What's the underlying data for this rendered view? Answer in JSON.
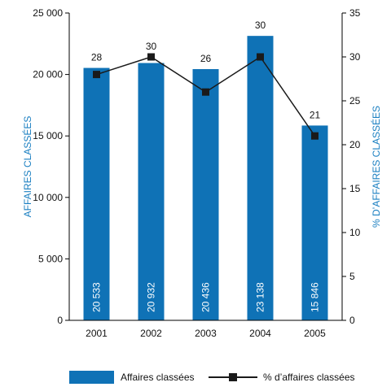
{
  "chart_data": {
    "type": "bar",
    "categories": [
      "2001",
      "2002",
      "2003",
      "2004",
      "2005"
    ],
    "series": [
      {
        "name": "Affaires classées",
        "type": "bar",
        "axis": "left",
        "values": [
          20533,
          20932,
          20436,
          23138,
          15846
        ],
        "value_labels": [
          "20 533",
          "20 932",
          "20 436",
          "23 138",
          "15 846"
        ]
      },
      {
        "name": "% d’affaires classées",
        "type": "line",
        "axis": "right",
        "values": [
          28,
          30,
          26,
          30,
          21
        ],
        "value_labels": [
          "28",
          "30",
          "26",
          "30",
          "21"
        ]
      }
    ],
    "ylabel": "AFFAIRES CLASSÉES",
    "y2label": "% D’AFFAIRES CLASSÉES",
    "ylim": [
      0,
      25000
    ],
    "y2lim": [
      0,
      35
    ],
    "yticks": [
      0,
      5000,
      10000,
      15000,
      20000,
      25000
    ],
    "ytick_labels": [
      "0",
      "5 000",
      "10 000",
      "15 000",
      "20 000",
      "25 000"
    ],
    "y2ticks": [
      0,
      5,
      10,
      15,
      20,
      25,
      30,
      35
    ],
    "y2tick_labels": [
      "0",
      "5",
      "10",
      "15",
      "20",
      "25",
      "30",
      "35"
    ],
    "grid": false,
    "legend_position": "bottom",
    "colors": {
      "bar": "#0f72b6",
      "line": "#1a1a1a",
      "axis_title": "#1a7fc1"
    }
  }
}
